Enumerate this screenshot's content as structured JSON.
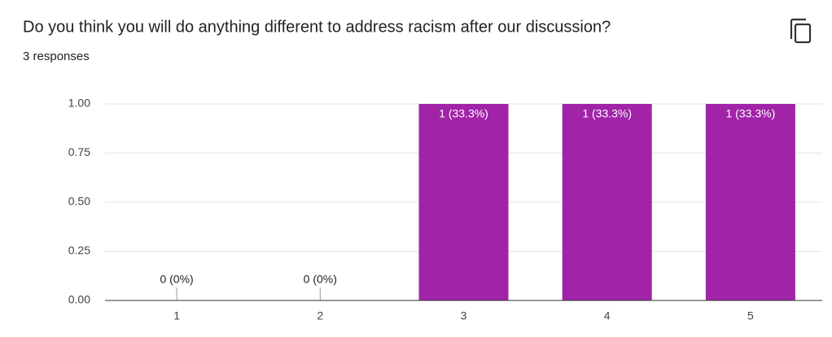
{
  "chart_data": {
    "type": "bar",
    "title": "Do you think you will do anything different to address racism after our discussion?",
    "subtitle": "3 responses",
    "categories": [
      "1",
      "2",
      "3",
      "4",
      "5"
    ],
    "values": [
      0,
      0,
      1,
      1,
      1
    ],
    "value_labels": [
      "0 (0%)",
      "0 (0%)",
      "1 (33.3%)",
      "1 (33.3%)",
      "1 (33.3%)"
    ],
    "color": "#a124a8",
    "ylim": [
      0,
      1
    ],
    "yticks": [
      {
        "value": 0,
        "label": "0.00"
      },
      {
        "value": 0.25,
        "label": "0.25"
      },
      {
        "value": 0.5,
        "label": "0.50"
      },
      {
        "value": 0.75,
        "label": "0.75"
      },
      {
        "value": 1,
        "label": "1.00"
      }
    ],
    "grid": true
  }
}
